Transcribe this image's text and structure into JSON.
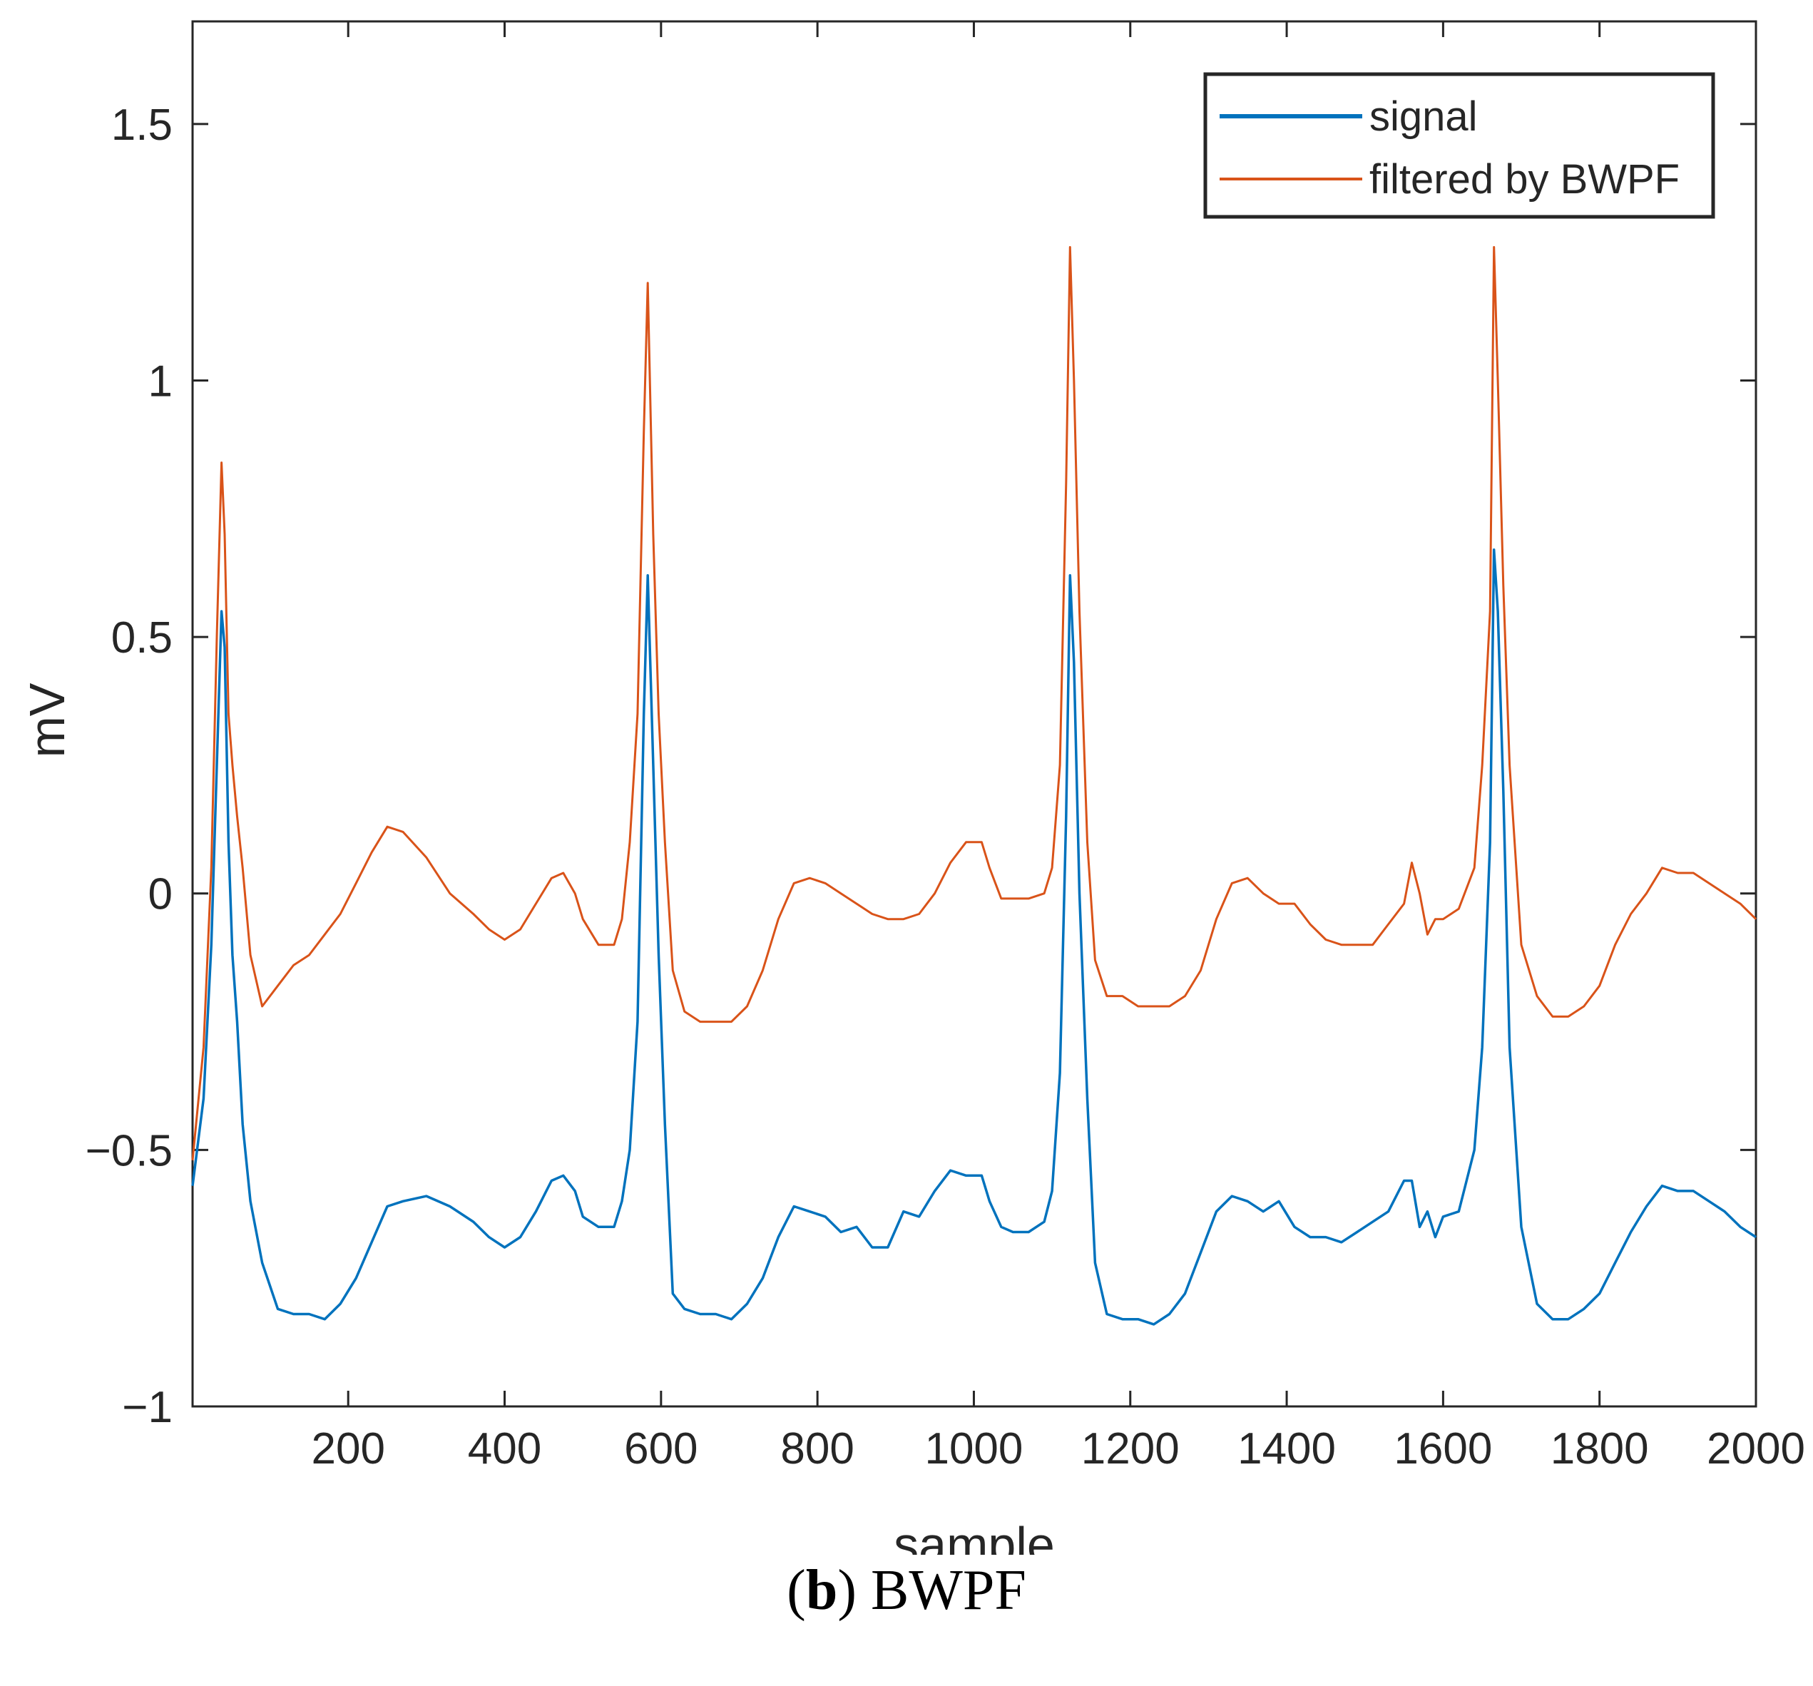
{
  "chart_data": {
    "type": "line",
    "title": "",
    "xlabel": "sample",
    "ylabel": "mV",
    "xlim": [
      1,
      2000
    ],
    "ylim": [
      -1,
      1.7
    ],
    "xticks": [
      200,
      400,
      600,
      800,
      1000,
      1200,
      1400,
      1600,
      1800,
      2000
    ],
    "yticks": [
      -1,
      -0.5,
      0,
      0.5,
      1,
      1.5
    ],
    "xtick_labels": [
      "200",
      "400",
      "600",
      "800",
      "1000",
      "1200",
      "1400",
      "1600",
      "1800",
      "2000"
    ],
    "ytick_labels": [
      "−1",
      "−0.5",
      "0",
      "0.5",
      "1",
      "1.5"
    ],
    "legend_position": "top-right",
    "grid": false,
    "series": [
      {
        "name": "signal",
        "color": "#0072BD",
        "x": [
          1,
          15,
          25,
          32,
          38,
          42,
          47,
          52,
          58,
          65,
          75,
          90,
          110,
          130,
          150,
          170,
          190,
          210,
          230,
          250,
          270,
          300,
          330,
          360,
          380,
          400,
          420,
          440,
          460,
          475,
          490,
          500,
          520,
          540,
          550,
          560,
          570,
          578,
          583,
          590,
          597,
          605,
          615,
          630,
          650,
          670,
          690,
          710,
          730,
          750,
          770,
          790,
          810,
          830,
          850,
          870,
          890,
          910,
          930,
          950,
          970,
          990,
          1010,
          1020,
          1035,
          1050,
          1070,
          1090,
          1100,
          1110,
          1118,
          1123,
          1128,
          1135,
          1145,
          1155,
          1170,
          1190,
          1210,
          1230,
          1250,
          1270,
          1290,
          1310,
          1330,
          1350,
          1370,
          1390,
          1410,
          1430,
          1450,
          1470,
          1490,
          1510,
          1530,
          1550,
          1560,
          1570,
          1580,
          1590,
          1600,
          1620,
          1640,
          1650,
          1660,
          1665,
          1670,
          1677,
          1685,
          1700,
          1720,
          1740,
          1760,
          1780,
          1800,
          1820,
          1840,
          1860,
          1880,
          1900,
          1920,
          1940,
          1960,
          1980,
          2000
        ],
        "values": [
          -0.57,
          -0.4,
          -0.1,
          0.25,
          0.55,
          0.48,
          0.1,
          -0.12,
          -0.25,
          -0.45,
          -0.6,
          -0.72,
          -0.81,
          -0.82,
          -0.82,
          -0.83,
          -0.8,
          -0.75,
          -0.68,
          -0.61,
          -0.6,
          -0.59,
          -0.61,
          -0.64,
          -0.67,
          -0.69,
          -0.67,
          -0.62,
          -0.56,
          -0.55,
          -0.58,
          -0.63,
          -0.65,
          -0.65,
          -0.6,
          -0.5,
          -0.25,
          0.35,
          0.62,
          0.25,
          -0.12,
          -0.45,
          -0.78,
          -0.81,
          -0.82,
          -0.82,
          -0.83,
          -0.8,
          -0.75,
          -0.67,
          -0.61,
          -0.62,
          -0.63,
          -0.66,
          -0.65,
          -0.69,
          -0.69,
          -0.62,
          -0.63,
          -0.58,
          -0.54,
          -0.55,
          -0.55,
          -0.6,
          -0.65,
          -0.66,
          -0.66,
          -0.64,
          -0.58,
          -0.35,
          0.15,
          0.62,
          0.45,
          0.0,
          -0.4,
          -0.72,
          -0.82,
          -0.83,
          -0.83,
          -0.84,
          -0.82,
          -0.78,
          -0.7,
          -0.62,
          -0.59,
          -0.6,
          -0.62,
          -0.6,
          -0.65,
          -0.67,
          -0.67,
          -0.68,
          -0.66,
          -0.64,
          -0.62,
          -0.56,
          -0.56,
          -0.65,
          -0.62,
          -0.67,
          -0.63,
          -0.62,
          -0.5,
          -0.3,
          0.1,
          0.67,
          0.55,
          0.2,
          -0.3,
          -0.65,
          -0.8,
          -0.83,
          -0.83,
          -0.81,
          -0.78,
          -0.72,
          -0.66,
          -0.61,
          -0.57,
          -0.58,
          -0.58,
          -0.6,
          -0.62,
          -0.65,
          -0.67
        ]
      },
      {
        "name": "filtered by BWPF",
        "color": "#D95319",
        "x": [
          1,
          15,
          25,
          32,
          38,
          42,
          47,
          52,
          58,
          65,
          75,
          90,
          110,
          130,
          150,
          170,
          190,
          210,
          230,
          250,
          270,
          300,
          330,
          360,
          380,
          400,
          420,
          440,
          460,
          475,
          490,
          500,
          520,
          540,
          550,
          560,
          570,
          578,
          583,
          590,
          597,
          605,
          615,
          630,
          650,
          670,
          690,
          710,
          730,
          750,
          770,
          790,
          810,
          830,
          850,
          870,
          890,
          910,
          930,
          950,
          970,
          990,
          1010,
          1020,
          1035,
          1050,
          1070,
          1090,
          1100,
          1110,
          1118,
          1123,
          1128,
          1135,
          1145,
          1155,
          1170,
          1190,
          1210,
          1230,
          1250,
          1270,
          1290,
          1310,
          1330,
          1350,
          1370,
          1390,
          1410,
          1430,
          1450,
          1470,
          1490,
          1510,
          1530,
          1550,
          1560,
          1570,
          1580,
          1590,
          1600,
          1620,
          1640,
          1650,
          1660,
          1665,
          1670,
          1677,
          1685,
          1700,
          1720,
          1740,
          1760,
          1780,
          1800,
          1820,
          1840,
          1860,
          1880,
          1900,
          1920,
          1940,
          1960,
          1980,
          2000
        ],
        "values": [
          -0.52,
          -0.3,
          0.05,
          0.5,
          0.84,
          0.7,
          0.35,
          0.25,
          0.15,
          0.05,
          -0.12,
          -0.22,
          -0.18,
          -0.14,
          -0.12,
          -0.08,
          -0.04,
          0.02,
          0.08,
          0.13,
          0.12,
          0.07,
          0.0,
          -0.04,
          -0.07,
          -0.09,
          -0.07,
          -0.02,
          0.03,
          0.04,
          0.0,
          -0.05,
          -0.1,
          -0.1,
          -0.05,
          0.1,
          0.35,
          0.9,
          1.19,
          0.7,
          0.35,
          0.1,
          -0.15,
          -0.23,
          -0.25,
          -0.25,
          -0.25,
          -0.22,
          -0.15,
          -0.05,
          0.02,
          0.03,
          0.02,
          0.0,
          -0.02,
          -0.04,
          -0.05,
          -0.05,
          -0.04,
          0.0,
          0.06,
          0.1,
          0.1,
          0.05,
          -0.01,
          -0.01,
          -0.01,
          0.0,
          0.05,
          0.25,
          0.8,
          1.26,
          1.0,
          0.55,
          0.1,
          -0.13,
          -0.2,
          -0.2,
          -0.22,
          -0.22,
          -0.22,
          -0.2,
          -0.15,
          -0.05,
          0.02,
          0.03,
          0.0,
          -0.02,
          -0.02,
          -0.06,
          -0.09,
          -0.1,
          -0.1,
          -0.1,
          -0.06,
          -0.02,
          0.06,
          0.0,
          -0.08,
          -0.05,
          -0.05,
          -0.03,
          0.05,
          0.25,
          0.55,
          1.26,
          1.0,
          0.6,
          0.25,
          -0.1,
          -0.2,
          -0.24,
          -0.24,
          -0.22,
          -0.18,
          -0.1,
          -0.04,
          0.0,
          0.05,
          0.04,
          0.04,
          0.02,
          0.0,
          -0.02,
          -0.05
        ]
      }
    ]
  },
  "caption": {
    "panel_letter": "b",
    "open_paren": "(",
    "close_paren": ")",
    "text": " BWPF"
  }
}
